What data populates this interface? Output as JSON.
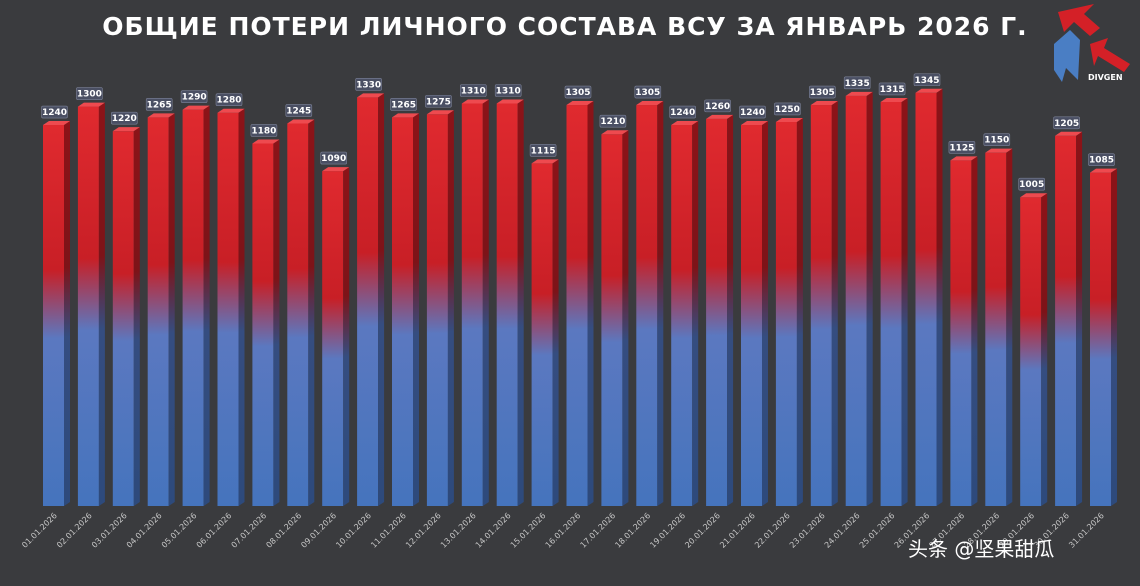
{
  "chart_data": {
    "type": "bar",
    "title": "ОБЩИЕ ПОТЕРИ ЛИЧНОГО СОСТАВА ВСУ ЗА ЯНВАРЬ 2026 Г.",
    "categories": [
      "01.01.2026",
      "02.01.2026",
      "03.01.2026",
      "04.01.2026",
      "05.01.2026",
      "06.01.2026",
      "07.01.2026",
      "08.01.2026",
      "09.01.2026",
      "10.01.2026",
      "11.01.2026",
      "12.01.2026",
      "13.01.2026",
      "14.01.2026",
      "15.01.2026",
      "16.01.2026",
      "17.01.2026",
      "18.01.2026",
      "19.01.2026",
      "20.01.2026",
      "21.01.2026",
      "22.01.2026",
      "23.01.2026",
      "24.01.2026",
      "25.01.2026",
      "26.01.2026",
      "27.01.2026",
      "28.01.2026",
      "29.01.2026",
      "30.01.2026",
      "31.01.2026"
    ],
    "values": [
      1240,
      1300,
      1220,
      1265,
      1290,
      1280,
      1180,
      1245,
      1090,
      1330,
      1265,
      1275,
      1310,
      1310,
      1115,
      1305,
      1210,
      1305,
      1240,
      1260,
      1240,
      1250,
      1305,
      1335,
      1315,
      1345,
      1125,
      1150,
      1005,
      1205,
      1085
    ],
    "ylim": [
      0,
      1380
    ],
    "grid": false,
    "legend": "none",
    "colors": {
      "top": "#d42027",
      "bottom": "#4a7ec4",
      "background": "#3a3b3e"
    }
  },
  "logo": {
    "text": "DIVGEN"
  },
  "watermark": {
    "text": "头条 @坚果甜瓜"
  }
}
